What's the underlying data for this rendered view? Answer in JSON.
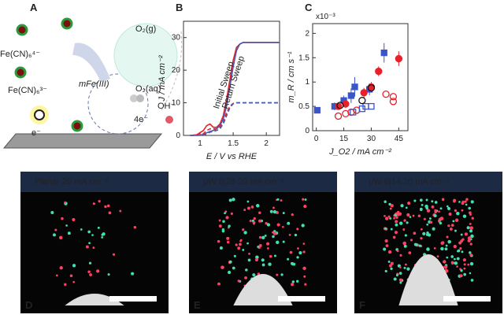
{
  "schematic": {
    "label": "A",
    "fe4": "Fe(CN)₆⁴⁻",
    "fe3": "Fe(CN)₆³⁻",
    "mfe": "mFe(III)",
    "o2g": "O₂(g)",
    "o2aq": "O₂(aq)",
    "oh": "OH⁻",
    "e4": "4e⁻",
    "e1": "e⁻"
  },
  "chart_data": [
    {
      "type": "line",
      "label": "B",
      "xlabel": "E / V vs RHE",
      "ylabel": "J / mA cm⁻²",
      "x": [
        0.85,
        0.95,
        1.05,
        1.1,
        1.15,
        1.2,
        1.25,
        1.3,
        1.35,
        1.4,
        1.45,
        1.5,
        1.55,
        1.6,
        1.65,
        1.7,
        1.8,
        1.9,
        2.0,
        2.1,
        2.2
      ],
      "series": [
        {
          "name": "Initial Sweep",
          "color": "#e8202a",
          "dash": false,
          "values": [
            0,
            0.2,
            1.5,
            3,
            3.5,
            2.5,
            2.5,
            3.5,
            6,
            11,
            17,
            23,
            27,
            28,
            28.5,
            28.5,
            28.5,
            28.5,
            28.5,
            28.5,
            28.5
          ]
        },
        {
          "name": "Return Sweep",
          "color": "#4a5bb0",
          "dash": false,
          "values": [
            0,
            0,
            0.3,
            0.8,
            1.2,
            1.5,
            2,
            3,
            5,
            9,
            15,
            21,
            26,
            28,
            28.5,
            28.5,
            28.5,
            28.5,
            28.5,
            28.5,
            28.5
          ]
        },
        {
          "color": "#e8202a",
          "dash": true,
          "values": [
            0,
            0,
            0.5,
            1.5,
            2,
            2,
            2,
            2.5,
            4,
            7,
            9,
            9.8,
            10,
            10,
            10,
            10,
            10,
            10,
            10,
            10,
            10
          ]
        },
        {
          "color": "#4a5bb0",
          "dash": true,
          "values": [
            0,
            0,
            0,
            0.5,
            1,
            1.2,
            1.5,
            2,
            3.5,
            6,
            8.5,
            9.7,
            10,
            10,
            10,
            10,
            10,
            10,
            10,
            10,
            10
          ]
        }
      ],
      "xlim": [
        0.75,
        2.2
      ],
      "xticks": [
        1,
        1.5,
        2
      ],
      "ylim": [
        0,
        35
      ],
      "yticks": [
        0,
        10,
        20,
        30
      ]
    },
    {
      "type": "scatter",
      "label": "C",
      "xlabel": "J_O2 / mA cm⁻²",
      "ylabel": "m_R / cm s⁻¹",
      "scale_label": "x10⁻³",
      "series": [
        {
          "color": "#3a55c8",
          "marker": "square",
          "filled": true,
          "x": [
            0.5,
            10,
            15,
            19,
            21,
            29,
            37
          ],
          "values": [
            0.42,
            0.5,
            0.62,
            0.72,
            0.9,
            0.85,
            1.6
          ],
          "errors": [
            0.05,
            0.08,
            0.1,
            0.15,
            0.2,
            0.12,
            0.2
          ]
        },
        {
          "color": "#e8202a",
          "marker": "circle",
          "filled": true,
          "x": [
            12,
            16,
            26,
            30,
            34,
            45
          ],
          "values": [
            0.5,
            0.55,
            0.78,
            0.9,
            1.22,
            1.48
          ],
          "errors": [
            0.06,
            0.08,
            0.1,
            0.1,
            0.1,
            0.15
          ]
        },
        {
          "color": "#e8202a",
          "marker": "circle",
          "filled": false,
          "x": [
            12,
            16,
            19,
            22,
            38,
            42,
            42
          ],
          "values": [
            0.3,
            0.35,
            0.38,
            0.42,
            0.75,
            0.6,
            0.7
          ]
        },
        {
          "color": "#3a55c8",
          "marker": "square",
          "filled": false,
          "x": [
            20,
            25,
            27,
            30
          ],
          "values": [
            0.38,
            0.45,
            0.5,
            0.5
          ]
        },
        {
          "color": "#111111",
          "marker": "circle",
          "filled": false,
          "x": [
            13,
            25,
            30
          ],
          "values": [
            0.52,
            0.62,
            0.88
          ]
        }
      ],
      "xlim": [
        -2,
        50
      ],
      "xticks": [
        0,
        15,
        30,
        45
      ],
      "ylim": [
        0,
        2.2
      ],
      "yticks": [
        0,
        0.5,
        1,
        1.5,
        2
      ]
    }
  ],
  "photos": [
    {
      "letter": "D",
      "caption": "Planar 20 mA cm⁻²"
    },
    {
      "letter": "E",
      "caption": "μW 6|28 20 mA cm⁻²"
    },
    {
      "letter": "F",
      "caption": "μW 6|14 20 mA cm⁻²"
    }
  ]
}
